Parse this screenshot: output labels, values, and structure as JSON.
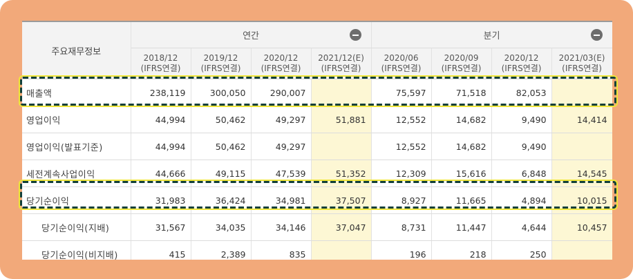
{
  "table": {
    "corner_label": "주요재무정보",
    "groups": [
      {
        "label": "연간",
        "collapse_icon": "minus-circle-icon"
      },
      {
        "label": "분기",
        "collapse_icon": "minus-circle-icon"
      }
    ],
    "periods": [
      {
        "date": "2018/12",
        "basis": "(IFRS연결)"
      },
      {
        "date": "2019/12",
        "basis": "(IFRS연결)"
      },
      {
        "date": "2020/12",
        "basis": "(IFRS연결)"
      },
      {
        "date": "2021/12(E)",
        "basis": "(IFRS연결)"
      },
      {
        "date": "2020/06",
        "basis": "(IFRS연결)"
      },
      {
        "date": "2020/09",
        "basis": "(IFRS연결)"
      },
      {
        "date": "2020/12",
        "basis": "(IFRS연결)"
      },
      {
        "date": "2021/03(E)",
        "basis": "(IFRS연결)"
      }
    ],
    "rows": [
      {
        "label": "매출액",
        "values": [
          "238,119",
          "300,050",
          "290,007",
          "",
          "75,597",
          "71,518",
          "82,053",
          ""
        ]
      },
      {
        "label": "영업이익",
        "values": [
          "44,994",
          "50,462",
          "49,297",
          "51,881",
          "12,552",
          "14,682",
          "9,490",
          "14,414"
        ]
      },
      {
        "label": "영업이익(발표기준)",
        "values": [
          "44,994",
          "50,462",
          "49,297",
          "",
          "12,552",
          "14,682",
          "9,490",
          ""
        ]
      },
      {
        "label": "세전계속사업이익",
        "values": [
          "44,666",
          "49,115",
          "47,539",
          "51,352",
          "12,309",
          "15,616",
          "6,848",
          "14,545"
        ]
      },
      {
        "label": "당기순이익",
        "values": [
          "31,983",
          "36,424",
          "34,981",
          "37,507",
          "8,927",
          "11,665",
          "4,894",
          "10,015"
        ]
      },
      {
        "label": "당기순이익(지배)",
        "values": [
          "31,567",
          "34,035",
          "34,146",
          "37,047",
          "8,731",
          "11,447",
          "4,644",
          "10,457"
        ]
      },
      {
        "label": "당기순이익(비지배)",
        "values": [
          "415",
          "2,389",
          "835",
          "",
          "196",
          "218",
          "250",
          ""
        ]
      }
    ]
  },
  "colors": {
    "frame": "#f2a97a",
    "estimate_cell": "#fdf7d4",
    "highlight_border": "#123f3a",
    "highlight_glow": "#f0e63a"
  }
}
